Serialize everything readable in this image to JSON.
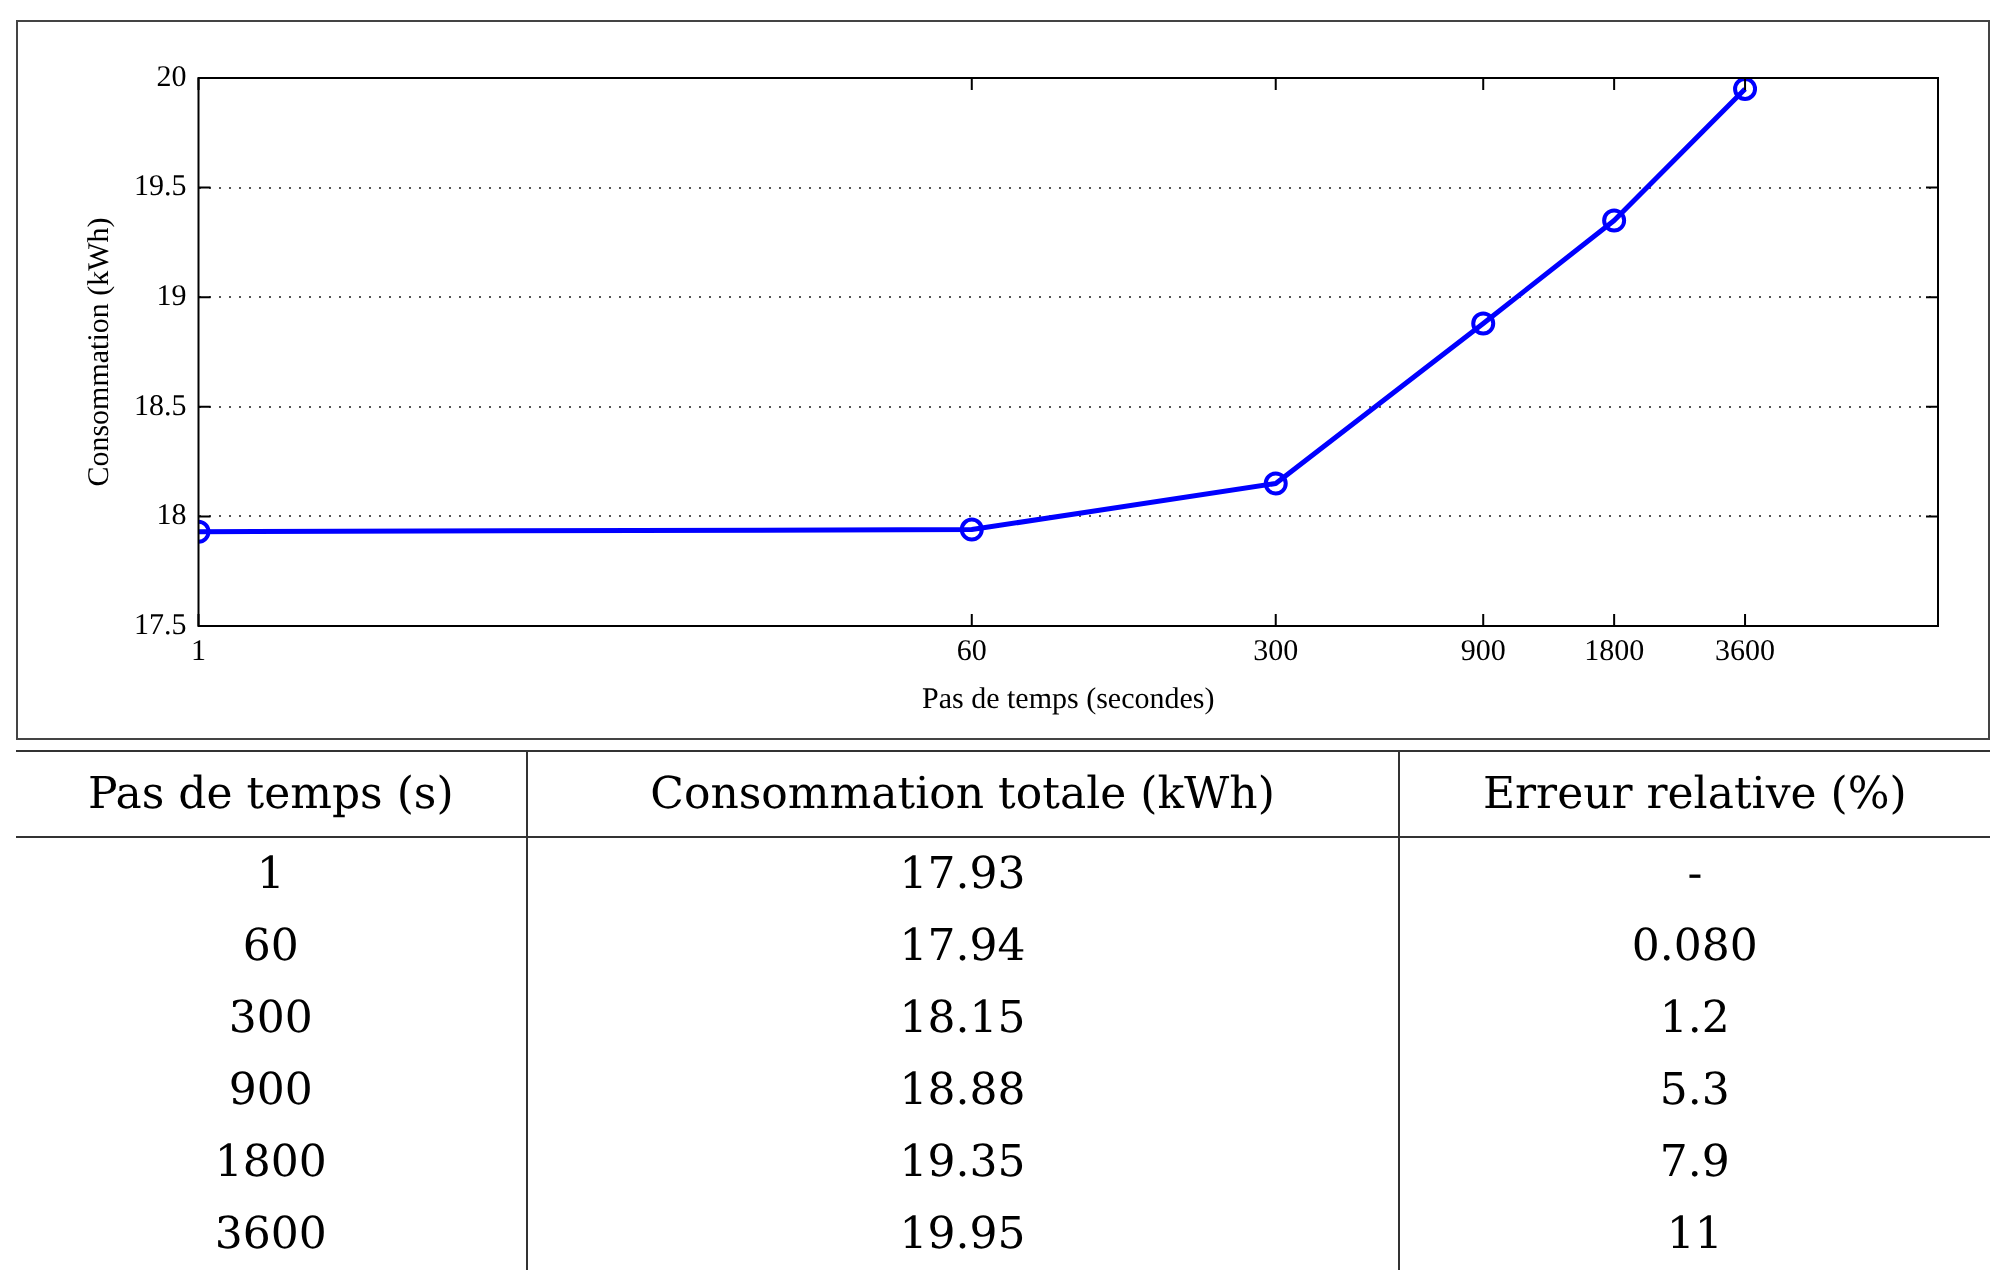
{
  "chart_data": {
    "type": "line",
    "xlabel": "Pas de temps (secondes)",
    "ylabel": "Consommation (kWh)",
    "x": [
      1,
      60,
      300,
      900,
      1800,
      3600
    ],
    "series": [
      {
        "color": "#0000ff",
        "values": [
          17.93,
          17.94,
          18.15,
          18.88,
          19.35,
          19.95
        ]
      }
    ],
    "log": "x",
    "xlim": [
      1,
      10000
    ],
    "xticks": [
      1,
      60,
      300,
      900,
      1800,
      3600
    ],
    "ylim": [
      17.5,
      20
    ],
    "yticks": [
      17.5,
      18,
      18.5,
      19,
      19.5,
      20
    ],
    "grid": "y",
    "marker": "circle",
    "line_style": "solid",
    "legend": false,
    "annotations": [
      "Pas de temps (s)",
      "Consommation totale (kWh)",
      "Erreur relative (%)",
      "1",
      "17.93",
      "-",
      "60",
      "17.94",
      "0.080",
      "300",
      "18.15",
      "1.2",
      "900",
      "18.88",
      "5.3",
      "1800",
      "19.35",
      "7.9",
      "3600",
      "19.95",
      "11"
    ]
  }
}
